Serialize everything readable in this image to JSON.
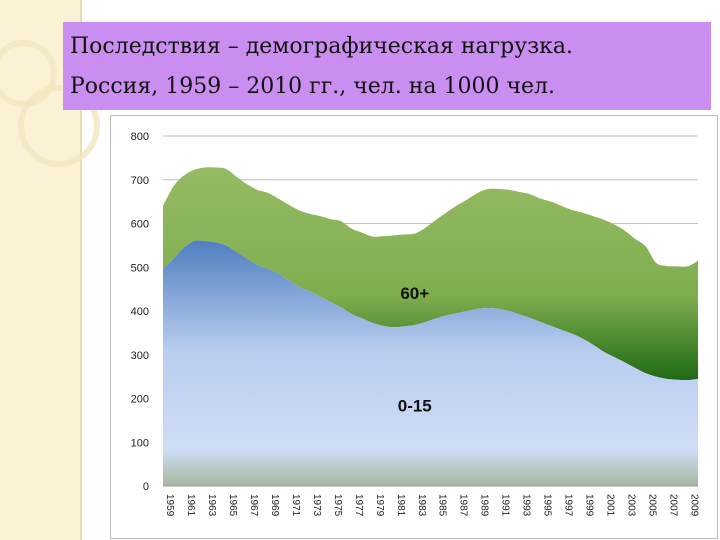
{
  "slide": {
    "title_line1": "Последствия – демографическая нагрузка.",
    "title_line2": "Россия, 1959 – 2010 гг., чел. на 1000 чел."
  },
  "colors": {
    "title_bg": "#c98ef0",
    "series_60_plus": "#8ab25a",
    "series_0_15": "#4f81bd"
  },
  "chart_data": {
    "type": "area",
    "stacked": true,
    "x": [
      1959,
      1960,
      1961,
      1962,
      1963,
      1964,
      1965,
      1966,
      1967,
      1968,
      1969,
      1970,
      1971,
      1972,
      1973,
      1974,
      1975,
      1976,
      1977,
      1978,
      1979,
      1980,
      1981,
      1982,
      1983,
      1984,
      1985,
      1986,
      1987,
      1988,
      1989,
      1990,
      1991,
      1992,
      1993,
      1994,
      1995,
      1996,
      1997,
      1998,
      1999,
      2000,
      2001,
      2002,
      2003,
      2004,
      2005,
      2006,
      2007,
      2008,
      2009,
      2010
    ],
    "series": [
      {
        "name": "0-15",
        "values": [
          495,
          520,
          545,
          560,
          560,
          557,
          550,
          535,
          520,
          505,
          497,
          485,
          470,
          455,
          445,
          433,
          420,
          408,
          393,
          383,
          373,
          366,
          363,
          365,
          368,
          375,
          383,
          390,
          395,
          400,
          405,
          407,
          405,
          400,
          392,
          384,
          375,
          366,
          357,
          348,
          337,
          323,
          307,
          295,
          283,
          270,
          258,
          250,
          245,
          243,
          242,
          245
        ]
      },
      {
        "name": "60+",
        "values": [
          145,
          165,
          165,
          163,
          168,
          171,
          175,
          172,
          170,
          172,
          173,
          172,
          173,
          175,
          177,
          184,
          190,
          197,
          195,
          196,
          197,
          205,
          210,
          210,
          209,
          215,
          225,
          235,
          246,
          255,
          265,
          272,
          274,
          277,
          280,
          283,
          282,
          284,
          283,
          283,
          288,
          294,
          302,
          303,
          301,
          295,
          290,
          260,
          258,
          259,
          260,
          270
        ]
      }
    ],
    "ylim": [
      0,
      800
    ],
    "yticks": [
      0,
      100,
      200,
      300,
      400,
      500,
      600,
      700,
      800
    ],
    "grid": true,
    "annotations": [
      "60+",
      "0-15"
    ]
  }
}
